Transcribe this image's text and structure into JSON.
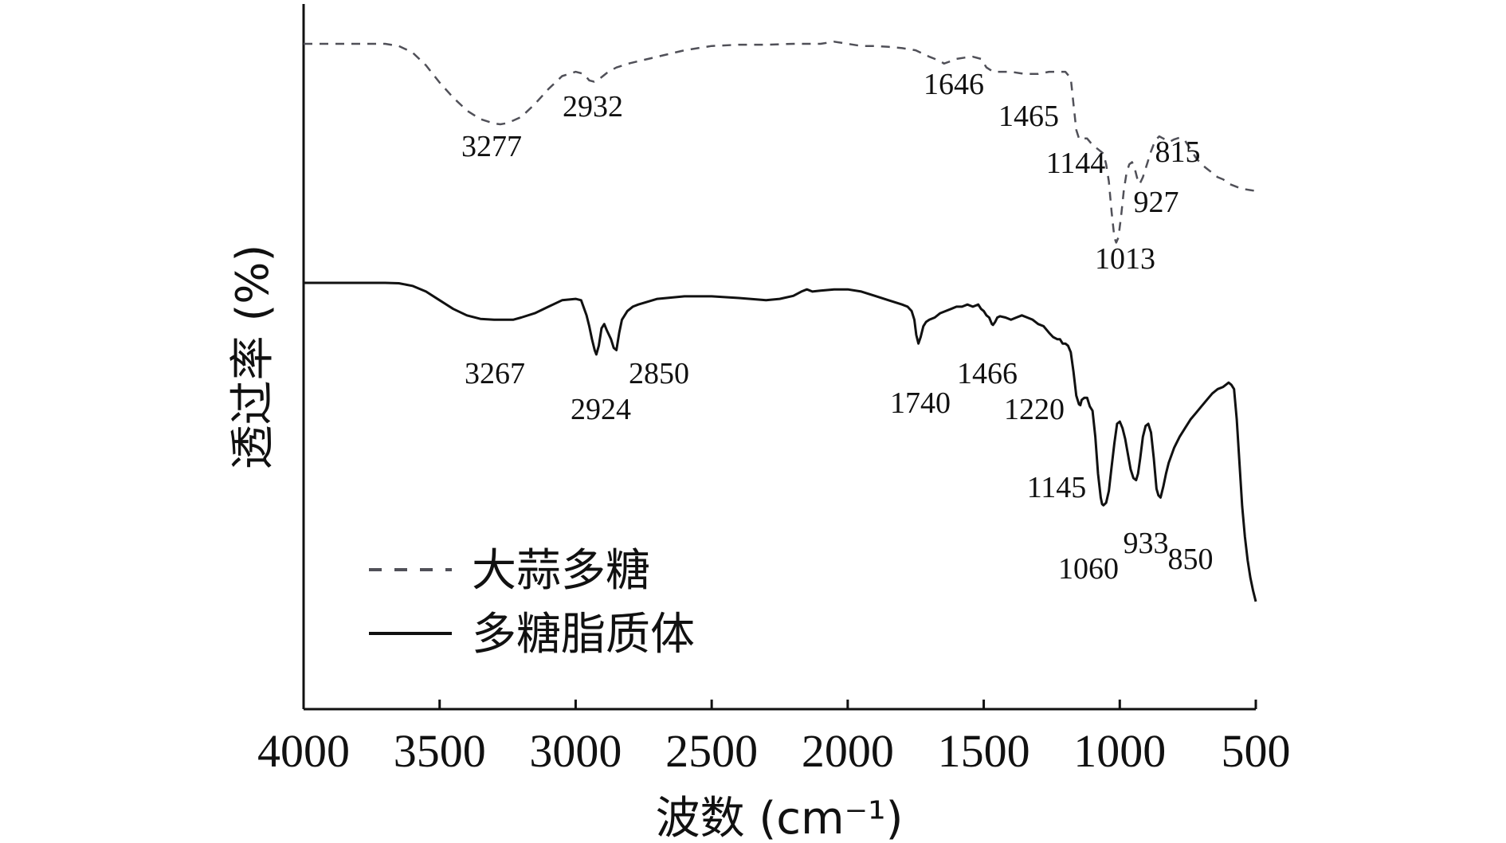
{
  "chart_data": {
    "type": "line",
    "xlabel": "波数 (cm⁻¹)",
    "ylabel": "透过率 (%)",
    "xlim": [
      4000,
      500
    ],
    "x_reversed": true,
    "x_ticks": [
      4000,
      3500,
      3000,
      2500,
      2000,
      1500,
      1000,
      500
    ],
    "y_ticks_shown": false,
    "grid": false,
    "legend_position": "bottom-left",
    "series": [
      {
        "name": "大蒜多糖",
        "style": "dashed",
        "color": "#505058",
        "x": [
          4000,
          3900,
          3800,
          3700,
          3650,
          3600,
          3550,
          3500,
          3450,
          3400,
          3350,
          3300,
          3277,
          3250,
          3200,
          3150,
          3100,
          3050,
          3000,
          2970,
          2950,
          2932,
          2910,
          2880,
          2850,
          2800,
          2700,
          2600,
          2500,
          2400,
          2300,
          2200,
          2100,
          2050,
          2000,
          1950,
          1900,
          1850,
          1800,
          1750,
          1700,
          1660,
          1646,
          1620,
          1600,
          1570,
          1540,
          1510,
          1490,
          1465,
          1440,
          1400,
          1350,
          1300,
          1260,
          1230,
          1200,
          1180,
          1170,
          1160,
          1150,
          1144,
          1135,
          1120,
          1100,
          1080,
          1060,
          1050,
          1040,
          1030,
          1020,
          1013,
          1005,
          995,
          985,
          975,
          965,
          955,
          945,
          935,
          927,
          915,
          900,
          885,
          870,
          855,
          840,
          828,
          815,
          800,
          780,
          760,
          740,
          720,
          700,
          680,
          660,
          640,
          620,
          600,
          580,
          560,
          540,
          520,
          500
        ],
        "y": [
          100,
          100,
          100,
          100,
          99.5,
          98,
          95,
          91,
          87.5,
          84.5,
          82.5,
          81.5,
          81.3,
          81.6,
          83,
          86,
          89.5,
          92.5,
          93.5,
          93,
          91.5,
          91.2,
          92,
          93.5,
          94.5,
          95.5,
          97,
          98.5,
          99.5,
          99.8,
          99.8,
          100,
          100,
          100.5,
          100,
          99.5,
          99.5,
          99.3,
          99,
          98.5,
          97,
          96,
          95.4,
          96,
          96.5,
          96.8,
          97,
          96.5,
          94.5,
          93.5,
          93.5,
          93.5,
          93,
          93,
          93.5,
          93.5,
          93.5,
          92,
          86,
          80,
          78,
          77.7,
          78,
          78,
          76.5,
          75.5,
          74.5,
          72,
          68,
          61,
          55,
          53.8,
          55,
          60,
          66,
          70,
          72,
          72.5,
          71,
          68.5,
          67.4,
          69,
          72,
          75,
          77.5,
          78.5,
          78,
          77.5,
          77.3,
          77.8,
          78.2,
          77.5,
          75.5,
          73.5,
          72,
          71,
          70,
          69,
          68.5,
          67.5,
          67,
          66.5,
          66.2,
          66,
          65.8
        ]
      },
      {
        "name": "多糖脂质体",
        "style": "solid",
        "color": "#111111",
        "x": [
          4000,
          3900,
          3800,
          3700,
          3650,
          3600,
          3550,
          3500,
          3450,
          3400,
          3350,
          3300,
          3267,
          3230,
          3200,
          3150,
          3100,
          3050,
          3000,
          2980,
          2960,
          2950,
          2940,
          2930,
          2924,
          2915,
          2905,
          2895,
          2885,
          2870,
          2860,
          2850,
          2840,
          2830,
          2810,
          2790,
          2770,
          2700,
          2600,
          2500,
          2400,
          2300,
          2250,
          2200,
          2170,
          2150,
          2130,
          2100,
          2050,
          2000,
          1950,
          1900,
          1850,
          1800,
          1780,
          1765,
          1755,
          1748,
          1740,
          1732,
          1722,
          1712,
          1700,
          1680,
          1660,
          1640,
          1620,
          1600,
          1580,
          1560,
          1540,
          1520,
          1510,
          1500,
          1490,
          1480,
          1470,
          1466,
          1458,
          1450,
          1440,
          1420,
          1400,
          1380,
          1360,
          1340,
          1320,
          1300,
          1280,
          1260,
          1245,
          1230,
          1220,
          1210,
          1200,
          1190,
          1180,
          1170,
          1160,
          1150,
          1145,
          1140,
          1130,
          1120,
          1110,
          1100,
          1090,
          1080,
          1070,
          1065,
          1060,
          1050,
          1040,
          1030,
          1020,
          1010,
          1000,
          990,
          980,
          970,
          960,
          950,
          940,
          933,
          925,
          915,
          905,
          895,
          885,
          875,
          865,
          858,
          850,
          840,
          830,
          820,
          800,
          780,
          760,
          740,
          720,
          700,
          680,
          660,
          640,
          620,
          610,
          600,
          590,
          580,
          570,
          560,
          550,
          540,
          530,
          520,
          510,
          500
        ],
        "y": [
          61.5,
          61.5,
          61.5,
          61.5,
          61.4,
          60.8,
          59.5,
          57.5,
          55.5,
          54,
          53.2,
          53,
          53,
          53,
          53.5,
          54.5,
          56,
          57.5,
          57.8,
          57.5,
          54,
          51.5,
          48.5,
          46,
          45,
          47,
          51,
          52,
          50.5,
          48.5,
          46.5,
          46,
          50,
          53,
          55,
          56,
          56.5,
          57.8,
          58.4,
          58.4,
          58,
          57.5,
          57.8,
          58.5,
          59.5,
          60,
          59.5,
          59.7,
          60,
          60,
          59.5,
          58.5,
          57.5,
          56.5,
          56,
          55,
          53,
          49.5,
          47.5,
          49,
          51.5,
          52.5,
          53,
          53.5,
          54.5,
          55,
          55.5,
          56,
          56,
          56.5,
          56,
          56.5,
          55.5,
          55,
          54,
          53.5,
          52,
          51.8,
          52.5,
          53.5,
          53.8,
          53.5,
          53,
          53.5,
          54,
          53.5,
          53,
          52,
          51.5,
          50,
          49,
          48.5,
          48.5,
          47.5,
          47.5,
          47,
          45.5,
          41,
          35.5,
          33.5,
          33.3,
          34.5,
          35,
          35,
          33,
          32,
          26,
          17.5,
          12,
          10.5,
          10.2,
          10.8,
          13.5,
          19,
          24.5,
          29,
          29.5,
          28,
          25.5,
          22,
          18.5,
          16.5,
          16,
          17.5,
          21,
          26,
          28.5,
          29,
          27,
          21,
          14,
          12.5,
          12,
          14.5,
          17.5,
          20,
          23.5,
          26,
          28,
          30,
          31.5,
          33,
          34.5,
          36,
          37,
          37.5,
          38,
          38.5,
          38,
          37,
          30,
          20,
          10,
          3,
          -2.5,
          -6.5,
          -9.5,
          -12
        ]
      }
    ],
    "annotations": [
      {
        "series": "大蒜多糖",
        "text": "3277"
      },
      {
        "series": "大蒜多糖",
        "text": "2932"
      },
      {
        "series": "大蒜多糖",
        "text": "1646"
      },
      {
        "series": "大蒜多糖",
        "text": "1465"
      },
      {
        "series": "大蒜多糖",
        "text": "1144"
      },
      {
        "series": "大蒜多糖",
        "text": "815"
      },
      {
        "series": "大蒜多糖",
        "text": "927"
      },
      {
        "series": "大蒜多糖",
        "text": "1013"
      },
      {
        "series": "多糖脂质体",
        "text": "3267"
      },
      {
        "series": "多糖脂质体",
        "text": "2924"
      },
      {
        "series": "多糖脂质体",
        "text": "2850"
      },
      {
        "series": "多糖脂质体",
        "text": "1740"
      },
      {
        "series": "多糖脂质体",
        "text": "1466"
      },
      {
        "series": "多糖脂质体",
        "text": "1220"
      },
      {
        "series": "多糖脂质体",
        "text": "1145"
      },
      {
        "series": "多糖脂质体",
        "text": "1060"
      },
      {
        "series": "多糖脂质体",
        "text": "933"
      },
      {
        "series": "多糖脂质体",
        "text": "850"
      }
    ]
  }
}
